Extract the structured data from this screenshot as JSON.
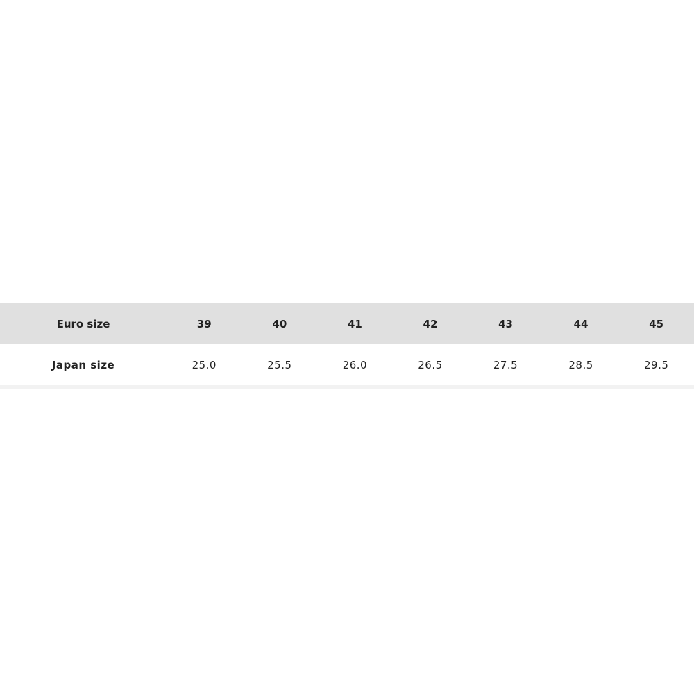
{
  "size_table": {
    "rows": [
      {
        "label": "Euro size",
        "values": [
          "39",
          "40",
          "41",
          "42",
          "43",
          "44",
          "45"
        ]
      },
      {
        "label": "Japan size",
        "values": [
          "25.0",
          "25.5",
          "26.0",
          "26.5",
          "27.5",
          "28.5",
          "29.5"
        ]
      }
    ],
    "header_color": "#e0e0e0"
  }
}
